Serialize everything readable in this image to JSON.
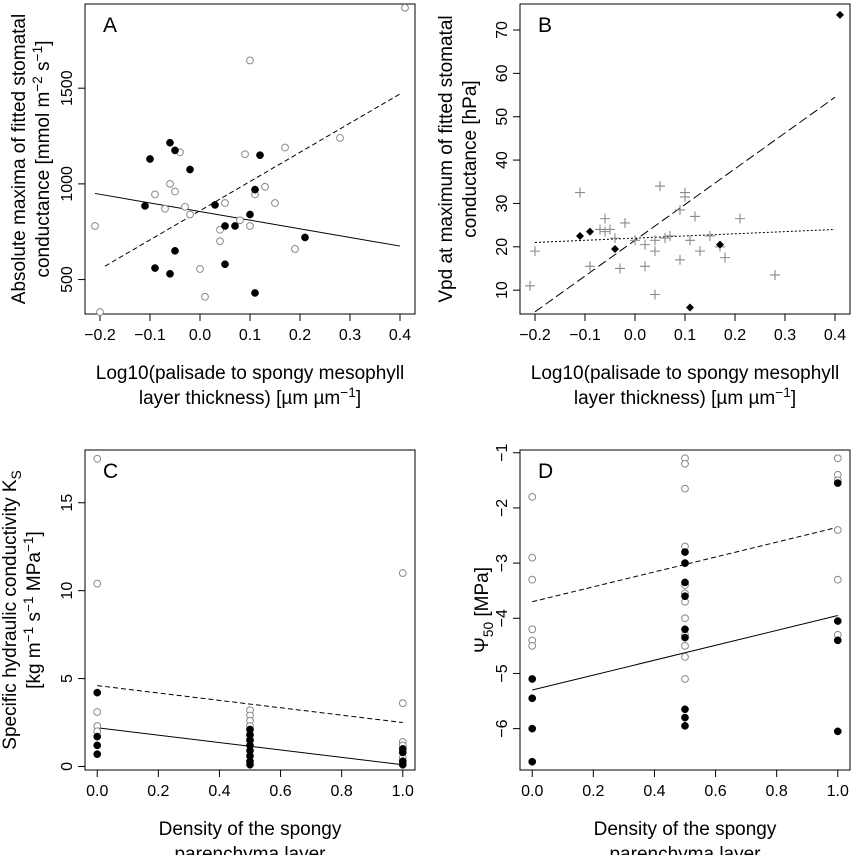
{
  "chart_data": [
    {
      "type": "scatter",
      "panel": "A",
      "ylabel_lines": [
        "Absolute maxima of fitted stomatal",
        "conductance [mmol m^-2 s^-1]"
      ],
      "xlabel_lines": [
        "Log10(palisade to spongy mesophyll",
        "layer thickness) [µm µm^-1]"
      ],
      "xlim": [
        -0.23,
        0.43
      ],
      "ylim": [
        320,
        1940
      ],
      "xticks": [
        -0.2,
        -0.1,
        0.0,
        0.1,
        0.2,
        0.3,
        0.4
      ],
      "xtick_labels": [
        "-0.2",
        "-0.1",
        "0.0",
        "0.1",
        "0.2",
        "0.3",
        "0.4"
      ],
      "yticks": [
        500,
        1000,
        1500
      ],
      "ytick_labels": [
        "500",
        "1000",
        "1500"
      ],
      "series": [
        {
          "marker": "open-circle",
          "points": [
            [
              -0.21,
              780
            ],
            [
              -0.2,
              330
            ],
            [
              -0.09,
              945
            ],
            [
              -0.07,
              870
            ],
            [
              -0.06,
              1000
            ],
            [
              -0.05,
              960
            ],
            [
              -0.04,
              1165
            ],
            [
              -0.03,
              880
            ],
            [
              -0.02,
              840
            ],
            [
              0.0,
              555
            ],
            [
              0.01,
              410
            ],
            [
              0.04,
              700
            ],
            [
              0.04,
              760
            ],
            [
              0.05,
              900
            ],
            [
              0.08,
              810
            ],
            [
              0.09,
              1155
            ],
            [
              0.1,
              780
            ],
            [
              0.1,
              1645
            ],
            [
              0.11,
              945
            ],
            [
              0.13,
              985
            ],
            [
              0.15,
              900
            ],
            [
              0.17,
              1190
            ],
            [
              0.19,
              660
            ],
            [
              0.28,
              1240
            ],
            [
              0.41,
              1920
            ]
          ]
        },
        {
          "marker": "filled-circle",
          "points": [
            [
              -0.11,
              885
            ],
            [
              -0.1,
              1130
            ],
            [
              -0.09,
              560
            ],
            [
              -0.06,
              1215
            ],
            [
              -0.06,
              530
            ],
            [
              -0.05,
              1175
            ],
            [
              -0.05,
              650
            ],
            [
              -0.02,
              1075
            ],
            [
              0.03,
              890
            ],
            [
              0.05,
              780
            ],
            [
              0.05,
              580
            ],
            [
              0.07,
              780
            ],
            [
              0.1,
              840
            ],
            [
              0.11,
              970
            ],
            [
              0.11,
              430
            ],
            [
              0.12,
              1150
            ],
            [
              0.21,
              720
            ]
          ]
        }
      ],
      "fits": [
        {
          "style": "dashed",
          "x": [
            -0.19,
            0.4
          ],
          "y": [
            570,
            1470
          ]
        },
        {
          "style": "solid",
          "x": [
            -0.21,
            0.4
          ],
          "y": [
            950,
            675
          ]
        }
      ]
    },
    {
      "type": "scatter",
      "panel": "B",
      "ylabel_lines": [
        "Vpd at maximum of fitted stomatal",
        "conductance [hPa]"
      ],
      "xlabel_lines": [
        "Log10(palisade to spongy mesophyll",
        "layer thickness) [µm µm^-1]"
      ],
      "xlim": [
        -0.23,
        0.43
      ],
      "ylim": [
        4.5,
        76
      ],
      "xticks": [
        -0.2,
        -0.1,
        0.0,
        0.1,
        0.2,
        0.3,
        0.4
      ],
      "xtick_labels": [
        "-0.2",
        "-0.1",
        "0.0",
        "0.1",
        "0.2",
        "0.3",
        "0.4"
      ],
      "yticks": [
        10,
        20,
        30,
        40,
        50,
        60,
        70
      ],
      "ytick_labels": [
        "10",
        "20",
        "30",
        "40",
        "50",
        "60",
        "70"
      ],
      "series": [
        {
          "marker": "plus",
          "points": [
            [
              -0.21,
              11
            ],
            [
              -0.2,
              19
            ],
            [
              -0.11,
              32.5
            ],
            [
              -0.09,
              15.5
            ],
            [
              -0.07,
              24
            ],
            [
              -0.06,
              26.5
            ],
            [
              -0.06,
              23.5
            ],
            [
              -0.05,
              24
            ],
            [
              -0.04,
              22
            ],
            [
              -0.03,
              15
            ],
            [
              -0.02,
              25.5
            ],
            [
              0.0,
              21.5
            ],
            [
              0.02,
              20.5
            ],
            [
              0.02,
              15.5
            ],
            [
              0.04,
              19
            ],
            [
              0.04,
              21.5
            ],
            [
              0.04,
              9
            ],
            [
              0.05,
              34
            ],
            [
              0.06,
              22
            ],
            [
              0.07,
              22.5
            ],
            [
              0.09,
              17
            ],
            [
              0.09,
              28.5
            ],
            [
              0.1,
              31.5
            ],
            [
              0.1,
              32.5
            ],
            [
              0.11,
              21.5
            ],
            [
              0.12,
              27
            ],
            [
              0.13,
              19
            ],
            [
              0.15,
              22.5
            ],
            [
              0.17,
              20
            ],
            [
              0.18,
              17.5
            ],
            [
              0.21,
              26.5
            ],
            [
              0.28,
              13.5
            ]
          ]
        },
        {
          "marker": "filled-diamond",
          "points": [
            [
              -0.11,
              22.5
            ],
            [
              -0.09,
              23.5
            ],
            [
              -0.04,
              19.5
            ],
            [
              0.11,
              6
            ],
            [
              0.17,
              20.5
            ],
            [
              0.41,
              73.5
            ]
          ]
        }
      ],
      "fits": [
        {
          "style": "longdash",
          "x": [
            -0.2,
            0.4
          ],
          "y": [
            5,
            54.5
          ]
        },
        {
          "style": "dotted",
          "x": [
            -0.2,
            0.4
          ],
          "y": [
            21,
            24
          ]
        }
      ]
    },
    {
      "type": "scatter",
      "panel": "C",
      "ylabel_lines": [
        "Specific hydraulic conductivity K_S",
        "[kg m^-1 s^-1 MPa^-1]"
      ],
      "xlabel_lines": [
        "Density of the spongy",
        "parenchyma layer"
      ],
      "xlim": [
        -0.04,
        1.04
      ],
      "ylim": [
        -0.2,
        18
      ],
      "xticks": [
        0.0,
        0.2,
        0.4,
        0.6,
        0.8,
        1.0
      ],
      "xtick_labels": [
        "0.0",
        "0.2",
        "0.4",
        "0.6",
        "0.8",
        "1.0"
      ],
      "yticks": [
        0,
        5,
        10,
        15
      ],
      "ytick_labels": [
        "0",
        "5",
        "10",
        "15"
      ],
      "series": [
        {
          "marker": "open-circle",
          "points": [
            [
              0,
              17.5
            ],
            [
              0,
              10.4
            ],
            [
              0,
              3.1
            ],
            [
              0,
              2.3
            ],
            [
              0,
              2.0
            ],
            [
              0.5,
              3.2
            ],
            [
              0.5,
              2.9
            ],
            [
              0.5,
              2.6
            ],
            [
              0.5,
              2.3
            ],
            [
              0.5,
              2.1
            ],
            [
              0.5,
              1.8
            ],
            [
              0.5,
              1.5
            ],
            [
              1,
              11.0
            ],
            [
              1,
              3.6
            ],
            [
              1,
              1.4
            ],
            [
              1,
              1.2
            ],
            [
              1,
              0.5
            ]
          ]
        },
        {
          "marker": "filled-circle",
          "points": [
            [
              0,
              4.2
            ],
            [
              0,
              1.7
            ],
            [
              0,
              1.2
            ],
            [
              0,
              0.7
            ],
            [
              0.5,
              2.1
            ],
            [
              0.5,
              1.8
            ],
            [
              0.5,
              1.5
            ],
            [
              0.5,
              1.2
            ],
            [
              0.5,
              0.9
            ],
            [
              0.5,
              0.6
            ],
            [
              0.5,
              0.3
            ],
            [
              0.5,
              0.1
            ],
            [
              1,
              1.0
            ],
            [
              1,
              0.8
            ],
            [
              1,
              0.3
            ],
            [
              1,
              0.1
            ]
          ]
        }
      ],
      "fits": [
        {
          "style": "dashed",
          "x": [
            0,
            1
          ],
          "y": [
            4.6,
            2.5
          ]
        },
        {
          "style": "solid",
          "x": [
            0,
            1
          ],
          "y": [
            2.2,
            0.1
          ]
        }
      ]
    },
    {
      "type": "scatter",
      "panel": "D",
      "ylabel_lines": [
        "Ψ_50 [MPa]"
      ],
      "xlabel_lines": [
        "Density of the spongy",
        "parenchyma layer"
      ],
      "xlim": [
        -0.04,
        1.04
      ],
      "ylim": [
        -6.75,
        -0.95
      ],
      "xticks": [
        0.0,
        0.2,
        0.4,
        0.6,
        0.8,
        1.0
      ],
      "xtick_labels": [
        "0.0",
        "0.2",
        "0.4",
        "0.6",
        "0.8",
        "1.0"
      ],
      "yticks": [
        -6,
        -5,
        -4,
        -3,
        -2,
        -1
      ],
      "ytick_labels": [
        "-6",
        "-5",
        "-4",
        "-3",
        "-2",
        "-1"
      ],
      "series": [
        {
          "marker": "open-circle",
          "points": [
            [
              0,
              -1.8
            ],
            [
              0,
              -2.9
            ],
            [
              0,
              -3.3
            ],
            [
              0,
              -4.2
            ],
            [
              0,
              -4.4
            ],
            [
              0,
              -4.5
            ],
            [
              0.5,
              -1.1
            ],
            [
              0.5,
              -1.2
            ],
            [
              0.5,
              -1.65
            ],
            [
              0.5,
              -2.7
            ],
            [
              0.5,
              -3.0
            ],
            [
              0.5,
              -3.4
            ],
            [
              0.5,
              -3.55
            ],
            [
              0.5,
              -3.7
            ],
            [
              0.5,
              -4.0
            ],
            [
              0.5,
              -4.3
            ],
            [
              0.5,
              -4.5
            ],
            [
              0.5,
              -4.7
            ],
            [
              0.5,
              -5.1
            ],
            [
              1,
              -1.1
            ],
            [
              1,
              -1.4
            ],
            [
              1,
              -1.5
            ],
            [
              1,
              -2.4
            ],
            [
              1,
              -3.3
            ],
            [
              1,
              -4.3
            ]
          ]
        },
        {
          "marker": "filled-circle",
          "points": [
            [
              0,
              -5.1
            ],
            [
              0,
              -5.45
            ],
            [
              0,
              -6.0
            ],
            [
              0,
              -6.6
            ],
            [
              0.5,
              -2.8
            ],
            [
              0.5,
              -3.0
            ],
            [
              0.5,
              -3.35
            ],
            [
              0.5,
              -3.6
            ],
            [
              0.5,
              -4.2
            ],
            [
              0.5,
              -4.35
            ],
            [
              0.5,
              -5.65
            ],
            [
              0.5,
              -5.8
            ],
            [
              0.5,
              -5.95
            ],
            [
              1,
              -1.55
            ],
            [
              1,
              -4.05
            ],
            [
              1,
              -4.4
            ],
            [
              1,
              -6.05
            ]
          ]
        }
      ],
      "fits": [
        {
          "style": "dashed",
          "x": [
            0,
            1
          ],
          "y": [
            -3.7,
            -2.35
          ]
        },
        {
          "style": "solid",
          "x": [
            0,
            1
          ],
          "y": [
            -5.3,
            -3.95
          ]
        }
      ]
    }
  ]
}
